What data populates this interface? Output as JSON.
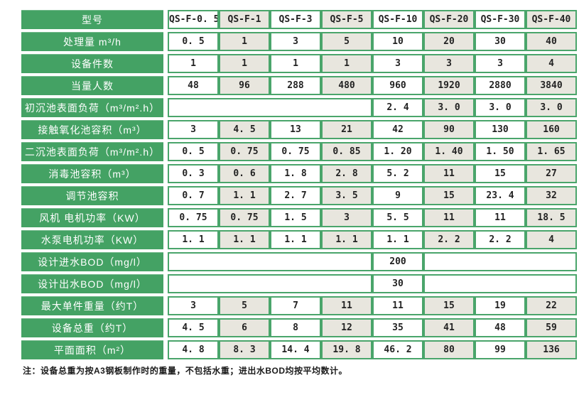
{
  "table": {
    "corner_label": "型号",
    "columns": [
      "QS-F-0. 5",
      "QS-F-1",
      "QS-F-3",
      "QS-F-5",
      "QS-F-10",
      "QS-F-20",
      "QS-F-30",
      "QS-F-40"
    ],
    "rows": [
      {
        "label": "处理量 m³/h",
        "cells": [
          "0. 5",
          "1",
          "3",
          "5",
          "10",
          "20",
          "30",
          "40"
        ]
      },
      {
        "label": "设备件数",
        "cells": [
          "1",
          "1",
          "1",
          "1",
          "3",
          "3",
          "3",
          "4"
        ]
      },
      {
        "label": "当量人数",
        "cells": [
          "48",
          "96",
          "288",
          "480",
          "960",
          "1920",
          "2880",
          "3840"
        ]
      },
      {
        "label": "初沉池表面负荷（m³/m².h）",
        "cells": [
          {
            "span": 4,
            "text": ""
          },
          "2. 4",
          "3. 0",
          "3. 0",
          "3. 0"
        ]
      },
      {
        "label": "接触氧化池容积（m³）",
        "cells": [
          "3",
          "4. 5",
          "13",
          "21",
          "42",
          "90",
          "130",
          "160"
        ]
      },
      {
        "label": "二沉池表面负荷（m³/m².h）",
        "cells": [
          "0. 5",
          "0. 75",
          "0. 75",
          "0. 85",
          "1. 20",
          "1. 40",
          "1. 50",
          "1. 65"
        ]
      },
      {
        "label": "消毒池容积（m³）",
        "cells": [
          "0. 3",
          "0. 6",
          "1. 8",
          "2. 8",
          "5. 2",
          "11",
          "15",
          "27"
        ]
      },
      {
        "label": "调节池容积",
        "cells": [
          "0. 7",
          "1. 1",
          "2. 7",
          "3. 5",
          "9",
          "15",
          "23. 4",
          "32"
        ]
      },
      {
        "label": "风机 电机功率（KW）",
        "cells": [
          "0. 75",
          "0. 75",
          "1. 5",
          "3",
          "5. 5",
          "11",
          "11",
          "18. 5"
        ]
      },
      {
        "label": "水泵电机功率（KW）",
        "cells": [
          "1. 1",
          "1. 1",
          "1. 1",
          "1. 1",
          "1. 1",
          "2. 2",
          "2. 2",
          "4"
        ]
      },
      {
        "label": "设计进水BOD（mg/l）",
        "cells": [
          {
            "span": 4,
            "text": ""
          },
          "200",
          {
            "span": 3,
            "text": ""
          }
        ]
      },
      {
        "label": "设计出水BOD（mg/l）",
        "cells": [
          {
            "span": 4,
            "text": ""
          },
          "30",
          {
            "span": 3,
            "text": ""
          }
        ]
      },
      {
        "label": "最大单件重量（约T）",
        "cells": [
          "3",
          "5",
          "7",
          "11",
          "11",
          "15",
          "19",
          "22"
        ]
      },
      {
        "label": "设备总重（约T）",
        "cells": [
          "4. 5",
          "6",
          "8",
          "12",
          "35",
          "41",
          "48",
          "59"
        ]
      },
      {
        "label": "平面面积（m²）",
        "cells": [
          "4. 8",
          "8. 3",
          "14. 4",
          "19. 8",
          "46. 2",
          "80",
          "99",
          "136"
        ]
      }
    ]
  },
  "footnote": "注：设备总重为按A3钢板制作时的重量，不包括水重；进出水BOD均按平均数计。",
  "colors": {
    "header_green": "#44a264",
    "border_green": "#4aa56b",
    "cell_beige": "#e8e6de",
    "cell_white": "#ffffff",
    "text_dark": "#222222",
    "header_text": "#ffffff"
  }
}
